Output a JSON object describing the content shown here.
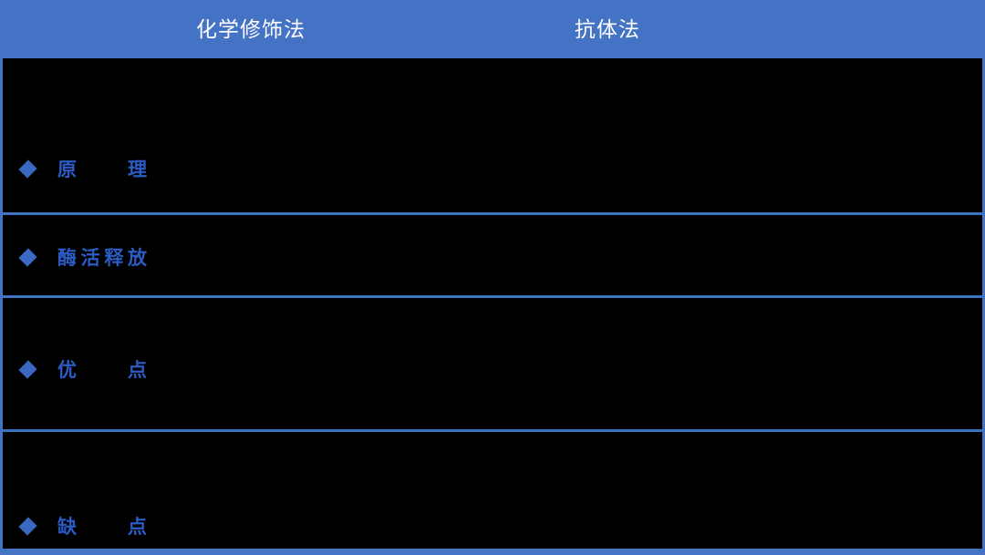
{
  "table": {
    "header": {
      "columns": [
        {
          "label": "化学修饰法"
        },
        {
          "label": "抗体法"
        }
      ]
    },
    "rows": [
      {
        "label": "原理"
      },
      {
        "label": "酶活释放"
      },
      {
        "label": "优点"
      },
      {
        "label": "缺点"
      }
    ],
    "bullet_icon": "diamond",
    "colors": {
      "header_bg": "#4472C4",
      "header_text": "#FFFFFF",
      "body_bg": "#000000",
      "divider": "#3C74C4",
      "outer_border": "#4472C4",
      "row_label_text": "#2B5BC4",
      "bullet": "#3A68C2"
    }
  }
}
